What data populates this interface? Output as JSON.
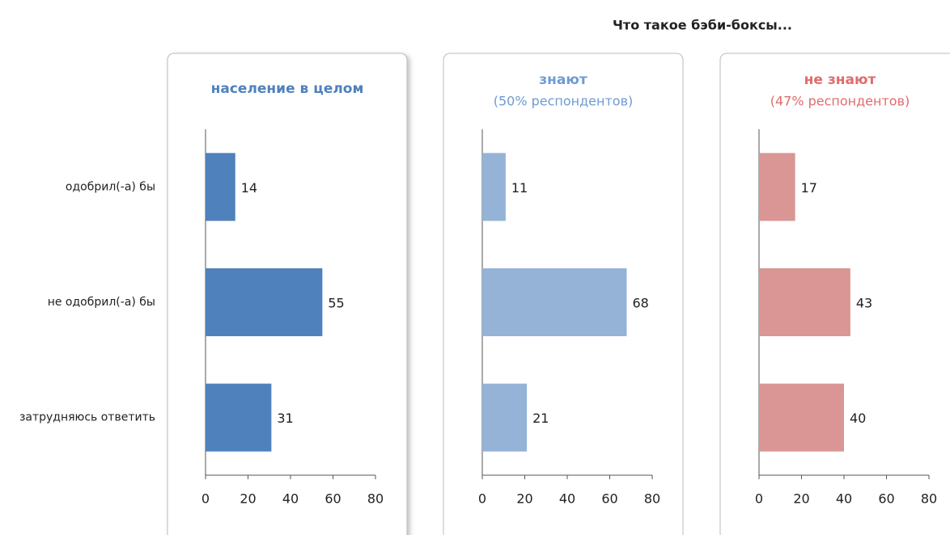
{
  "title": "Что такое бэби-боксы...",
  "chart_data": [
    {
      "type": "bar",
      "orientation": "horizontal",
      "title": "население в целом",
      "title_color": "#4f81bd",
      "categories": [
        "одобрил(-а) бы",
        "не одобрил(-а) бы",
        "затрудняюсь ответить"
      ],
      "values": [
        14,
        55,
        31
      ],
      "color": "#4f81bd",
      "xlim": [
        0,
        80
      ],
      "xticks": [
        0,
        20,
        40,
        60,
        80
      ]
    },
    {
      "type": "bar",
      "orientation": "horizontal",
      "title": "знают",
      "subtitle": "(50% респондентов)",
      "title_color": "#6f9bd2",
      "categories": [
        null,
        null,
        null
      ],
      "values": [
        11,
        68,
        21
      ],
      "color": "#95b3d7",
      "xlim": [
        0,
        80
      ],
      "xticks": [
        0,
        20,
        40,
        60,
        80
      ]
    },
    {
      "type": "bar",
      "orientation": "horizontal",
      "title": "не знают",
      "subtitle": "(47% респондентов)",
      "title_color": "#e26b6b",
      "categories": [
        null,
        null,
        null
      ],
      "values": [
        17,
        43,
        40
      ],
      "color": "#d99694",
      "xlim": [
        0,
        80
      ],
      "xticks": [
        0,
        20,
        40,
        60,
        80
      ]
    }
  ]
}
